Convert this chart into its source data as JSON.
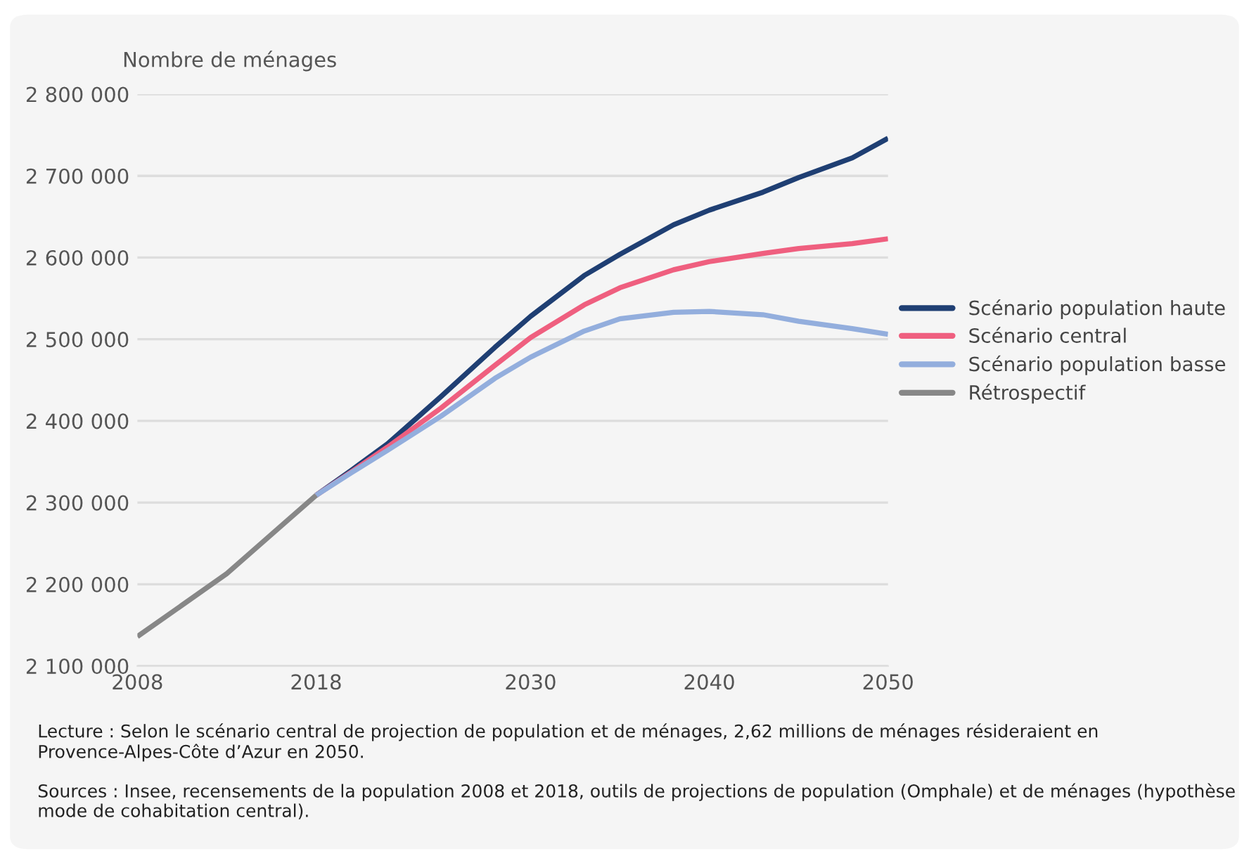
{
  "chart_data": {
    "type": "line",
    "ylabel": "Nombre de ménages",
    "series": [
      {
        "name": "Scénario population haute",
        "color": "#1f3f73",
        "x": [
          2018,
          2020,
          2022,
          2025,
          2028,
          2030,
          2033,
          2035,
          2038,
          2040,
          2043,
          2045,
          2048,
          2050
        ],
        "values": [
          2309000,
          2340000,
          2372000,
          2430000,
          2490000,
          2528000,
          2578000,
          2604000,
          2640000,
          2658000,
          2680000,
          2698000,
          2722000,
          2746000
        ]
      },
      {
        "name": "Scénario central",
        "color": "#ef5f7f",
        "x": [
          2018,
          2020,
          2022,
          2025,
          2028,
          2030,
          2033,
          2035,
          2038,
          2040,
          2043,
          2045,
          2048,
          2050
        ],
        "values": [
          2309000,
          2338000,
          2368000,
          2416000,
          2468000,
          2502000,
          2542000,
          2563000,
          2585000,
          2595000,
          2605000,
          2611000,
          2617000,
          2623000
        ]
      },
      {
        "name": "Scénario population basse",
        "color": "#93aedd",
        "x": [
          2018,
          2020,
          2022,
          2025,
          2028,
          2030,
          2033,
          2035,
          2038,
          2040,
          2043,
          2045,
          2048,
          2050
        ],
        "values": [
          2309000,
          2337000,
          2364000,
          2406000,
          2452000,
          2478000,
          2510000,
          2525000,
          2533000,
          2534000,
          2530000,
          2522000,
          2513000,
          2506000
        ]
      },
      {
        "name": "Rétrospectif",
        "color": "#878787",
        "x": [
          2008,
          2013,
          2018
        ],
        "values": [
          2136000,
          2213000,
          2309000
        ]
      }
    ],
    "xlim": [
      2008,
      2050
    ],
    "xticks": [
      2008,
      2018,
      2030,
      2040,
      2050
    ],
    "ylim": [
      2100000,
      2800000
    ],
    "yticks": [
      {
        "value": 2100000,
        "label": "2 100 000"
      },
      {
        "value": 2200000,
        "label": "2 200 000"
      },
      {
        "value": 2300000,
        "label": "2 300 000"
      },
      {
        "value": 2400000,
        "label": "2 400 000"
      },
      {
        "value": 2500000,
        "label": "2 500 000"
      },
      {
        "value": 2600000,
        "label": "2 600 000"
      },
      {
        "value": 2700000,
        "label": "2 700 000"
      },
      {
        "value": 2800000,
        "label": "2 800 000"
      }
    ],
    "grid": "y",
    "legend": "right",
    "annotations": [
      "Lecture : Selon le scénario central de projection de population et de ménages, 2,62 millions de ménages résideraient en Provence-Alpes-Côte d’Azur en 2050.",
      "Sources : Insee, recensements de la population 2008 et 2018, outils de projections de population (Omphale) et de ménages (hypothèse mode de cohabitation central)."
    ]
  }
}
